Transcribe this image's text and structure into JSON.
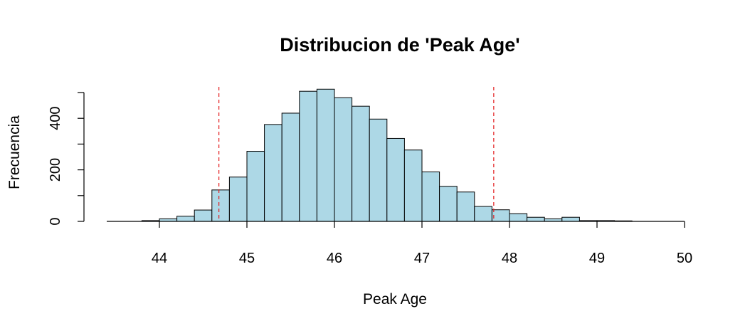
{
  "chart_data": {
    "type": "bar",
    "title": "Distribucion de 'Peak Age'",
    "xlabel": "Peak Age",
    "ylabel": "Frecuencia",
    "xlim": [
      43.4,
      50
    ],
    "ylim": [
      0,
      500
    ],
    "x_ticks": [
      44,
      45,
      46,
      47,
      48,
      49,
      50
    ],
    "y_ticks": [
      0,
      200,
      400
    ],
    "y_minor_ticks": [
      100,
      300,
      500
    ],
    "bin_width": 0.2,
    "bins": [
      {
        "x0": 43.8,
        "x1": 44.0,
        "count": 3
      },
      {
        "x0": 44.0,
        "x1": 44.2,
        "count": 10
      },
      {
        "x0": 44.2,
        "x1": 44.4,
        "count": 20
      },
      {
        "x0": 44.4,
        "x1": 44.6,
        "count": 44
      },
      {
        "x0": 44.6,
        "x1": 44.8,
        "count": 122
      },
      {
        "x0": 44.8,
        "x1": 45.0,
        "count": 172
      },
      {
        "x0": 45.0,
        "x1": 45.2,
        "count": 272
      },
      {
        "x0": 45.2,
        "x1": 45.4,
        "count": 376
      },
      {
        "x0": 45.4,
        "x1": 45.6,
        "count": 420
      },
      {
        "x0": 45.6,
        "x1": 45.8,
        "count": 505
      },
      {
        "x0": 45.8,
        "x1": 46.0,
        "count": 513
      },
      {
        "x0": 46.0,
        "x1": 46.2,
        "count": 480
      },
      {
        "x0": 46.2,
        "x1": 46.4,
        "count": 447
      },
      {
        "x0": 46.4,
        "x1": 46.6,
        "count": 397
      },
      {
        "x0": 46.6,
        "x1": 46.8,
        "count": 322
      },
      {
        "x0": 46.8,
        "x1": 47.0,
        "count": 277
      },
      {
        "x0": 47.0,
        "x1": 47.2,
        "count": 192
      },
      {
        "x0": 47.2,
        "x1": 47.4,
        "count": 136
      },
      {
        "x0": 47.4,
        "x1": 47.6,
        "count": 114
      },
      {
        "x0": 47.6,
        "x1": 47.8,
        "count": 58
      },
      {
        "x0": 47.8,
        "x1": 48.0,
        "count": 45
      },
      {
        "x0": 48.0,
        "x1": 48.2,
        "count": 30
      },
      {
        "x0": 48.2,
        "x1": 48.4,
        "count": 16
      },
      {
        "x0": 48.4,
        "x1": 48.6,
        "count": 10
      },
      {
        "x0": 48.6,
        "x1": 48.8,
        "count": 16
      },
      {
        "x0": 48.8,
        "x1": 49.0,
        "count": 3
      },
      {
        "x0": 49.0,
        "x1": 49.2,
        "count": 3
      },
      {
        "x0": 49.2,
        "x1": 49.4,
        "count": 2
      }
    ],
    "reference_lines": [
      {
        "x": 44.68,
        "color": "#e31a1c",
        "style": "dashed"
      },
      {
        "x": 47.82,
        "color": "#e31a1c",
        "style": "dashed"
      }
    ],
    "bar_color": "#add8e6",
    "grid": false,
    "legend": "none"
  }
}
